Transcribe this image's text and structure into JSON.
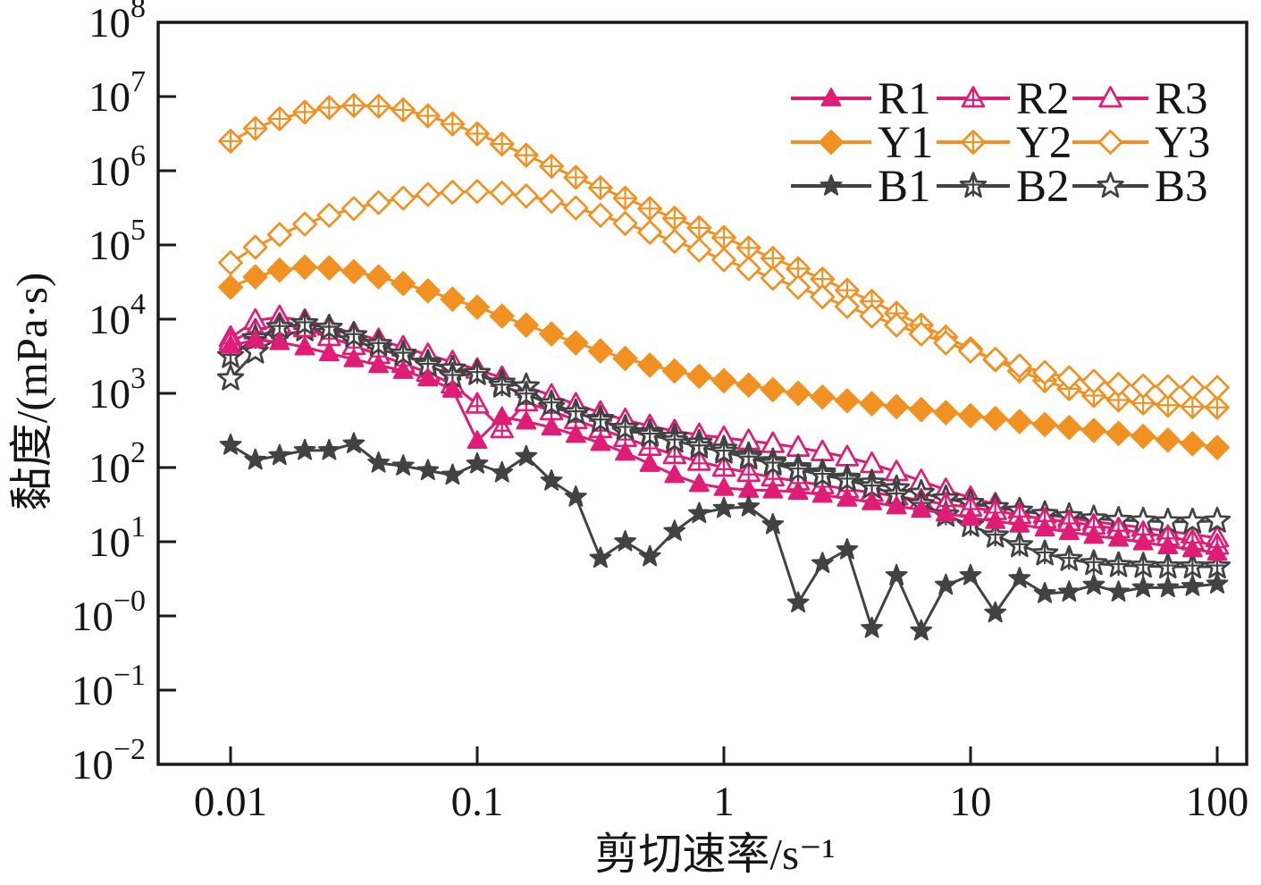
{
  "chart_data": {
    "type": "line",
    "title": "",
    "x_axis": {
      "label": "剪切速率/s⁻¹",
      "scale": "log",
      "range": [
        0.01,
        100
      ],
      "ticks": [
        "0.01",
        "0.1",
        "1",
        "10",
        "100"
      ]
    },
    "y_axis": {
      "label": "黏度/(mPa·s)",
      "scale": "log",
      "range_exponents": [
        -2,
        8
      ],
      "tick_exponents": [
        "8",
        "7",
        "6",
        "5",
        "4",
        "3",
        "2",
        "1",
        "−0",
        "−1",
        "−2"
      ]
    },
    "legend": {
      "position": "top-right-inside",
      "rows": [
        [
          "R1",
          "R2",
          "R3"
        ],
        [
          "Y1",
          "Y2",
          "Y3"
        ],
        [
          "B1",
          "B2",
          "B3"
        ]
      ]
    },
    "grid": false,
    "x": [
      0.01,
      0.0126,
      0.0158,
      0.02,
      0.0251,
      0.0316,
      0.0398,
      0.0501,
      0.0631,
      0.0794,
      0.1,
      0.126,
      0.158,
      0.2,
      0.251,
      0.316,
      0.398,
      0.501,
      0.631,
      0.794,
      1,
      1.26,
      1.58,
      2,
      2.51,
      3.16,
      3.98,
      5.01,
      6.31,
      7.94,
      10,
      12.6,
      15.8,
      20,
      25.1,
      31.6,
      39.8,
      50.1,
      63.1,
      79.4,
      100
    ],
    "series": [
      {
        "name": "R1",
        "color": "#df1d77",
        "marker": "triangle",
        "marker_fill": "filled",
        "values": [
          4370,
          5250,
          4900,
          4170,
          3470,
          2880,
          2400,
          2000,
          1590,
          1120,
          229,
          479,
          417,
          347,
          275,
          214,
          158,
          112,
          79,
          60,
          53,
          50,
          49,
          47,
          43,
          38,
          34,
          30,
          27,
          24,
          21,
          19,
          17,
          15.1,
          13.5,
          12,
          11,
          9.8,
          8.7,
          7.9,
          7.1
        ]
      },
      {
        "name": "R2",
        "color": "#df1d77",
        "marker": "triangle",
        "marker_fill": "crossed",
        "values": [
          5010,
          7080,
          8510,
          7590,
          5750,
          4370,
          3310,
          2510,
          1910,
          1320,
          708,
          331,
          759,
          575,
          437,
          331,
          251,
          191,
          148,
          120,
          100,
          85,
          74,
          65,
          58,
          51,
          46,
          41,
          36,
          32,
          29,
          26,
          23,
          20,
          18.6,
          16.6,
          14.8,
          13.2,
          11.7,
          10.2,
          8.9
        ]
      },
      {
        "name": "R3",
        "color": "#df1d77",
        "marker": "triangle",
        "marker_fill": "open",
        "values": [
          5620,
          9550,
          10700,
          9550,
          7940,
          6460,
          5250,
          4170,
          3310,
          2630,
          2090,
          1620,
          1230,
          933,
          708,
          550,
          437,
          363,
          309,
          275,
          251,
          229,
          209,
          186,
          162,
          138,
          112,
          87,
          66,
          50,
          39,
          32,
          27,
          23.4,
          20.9,
          18.6,
          17,
          15.5,
          13.8,
          12.6,
          11.2
        ]
      },
      {
        "name": "Y1",
        "color": "#f09122",
        "marker": "diamond",
        "marker_fill": "filled",
        "values": [
          26900,
          37200,
          45700,
          50100,
          49000,
          43700,
          37200,
          30200,
          24000,
          18600,
          14500,
          11000,
          8320,
          6310,
          4790,
          3720,
          2950,
          2400,
          2000,
          1700,
          1480,
          1290,
          1120,
          1000,
          891,
          794,
          724,
          661,
          603,
          550,
          501,
          457,
          417,
          380,
          347,
          316,
          288,
          263,
          234,
          209,
          186
        ]
      },
      {
        "name": "Y2",
        "color": "#f09122",
        "marker": "diamond",
        "marker_fill": "crossed",
        "values": [
          2510000,
          3720000,
          5010000,
          6170000,
          7080000,
          7590000,
          7410000,
          6610000,
          5500000,
          4270000,
          3160000,
          2290000,
          1620000,
          1150000,
          813000,
          589000,
          427000,
          309000,
          229000,
          170000,
          126000,
          91200,
          66100,
          47900,
          34700,
          24500,
          17400,
          12000,
          8320,
          5750,
          3980,
          2820,
          2000,
          1480,
          1150,
          933,
          813,
          741,
          692,
          661,
          646
        ]
      },
      {
        "name": "Y3",
        "color": "#f09122",
        "marker": "diamond",
        "marker_fill": "open",
        "values": [
          57500,
          93300,
          138000,
          191000,
          251000,
          309000,
          372000,
          427000,
          479000,
          513000,
          525000,
          501000,
          457000,
          389000,
          316000,
          251000,
          195000,
          148000,
          112000,
          85100,
          63100,
          47900,
          35500,
          26900,
          20000,
          14800,
          11000,
          8320,
          6310,
          4790,
          3720,
          2880,
          2340,
          1910,
          1620,
          1450,
          1320,
          1260,
          1230,
          1200,
          1200
        ]
      },
      {
        "name": "B1",
        "color": "#424242",
        "marker": "star",
        "marker_fill": "filled",
        "values": [
          200,
          126,
          145,
          170,
          170,
          209,
          115,
          105,
          91,
          79,
          112,
          85,
          141,
          66,
          40,
          6.0,
          10.0,
          6.3,
          13.8,
          24,
          28.2,
          29.5,
          17,
          1.5,
          5.1,
          7.8,
          0.68,
          3.5,
          0.63,
          2.6,
          3.5,
          1.1,
          3.2,
          2.0,
          2.1,
          2.6,
          2.1,
          2.4,
          2.4,
          2.5,
          2.7
        ]
      },
      {
        "name": "B2",
        "color": "#424242",
        "marker": "star",
        "marker_fill": "crossed",
        "values": [
          3160,
          5500,
          7760,
          8710,
          7590,
          6030,
          4570,
          3390,
          2400,
          1700,
          1860,
          1260,
          955,
          724,
          550,
          427,
          339,
          275,
          229,
          191,
          162,
          135,
          112,
          93,
          79,
          68,
          55,
          43,
          32,
          23,
          16.6,
          12,
          8.9,
          6.9,
          5.8,
          5.1,
          4.8,
          4.7,
          4.6,
          4.6,
          4.6
        ]
      },
      {
        "name": "B3",
        "color": "#424242",
        "marker": "star",
        "marker_fill": "open",
        "values": [
          1580,
          3630,
          5750,
          7240,
          6460,
          5130,
          3980,
          3160,
          2570,
          2140,
          1860,
          1380,
          1230,
          646,
          537,
          447,
          302,
          295,
          257,
          214,
          178,
          145,
          120,
          100,
          85,
          72,
          62,
          52,
          45,
          38,
          33,
          29,
          26,
          23.4,
          21.9,
          20.4,
          19.5,
          19.1,
          18.6,
          18.6,
          19.1
        ]
      }
    ]
  }
}
